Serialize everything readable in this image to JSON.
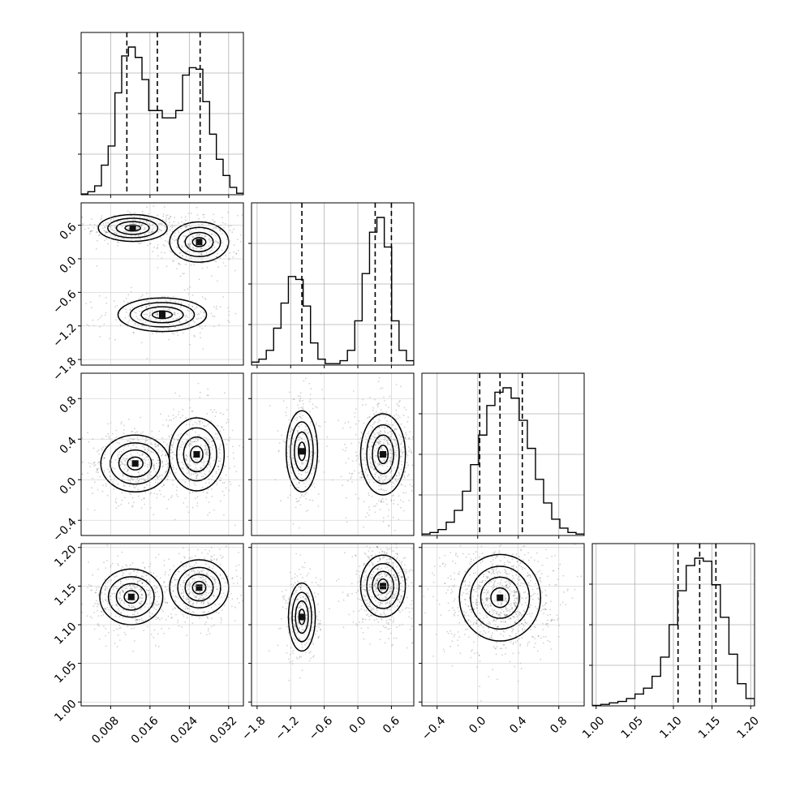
{
  "chart_data": {
    "type": "corner",
    "title": "",
    "parameters": [
      {
        "name": "",
        "range": [
          0.002,
          0.035
        ],
        "ticks": [
          0.008,
          0.016,
          0.024,
          0.032
        ],
        "tick_labels": [
          "0.008",
          "0.016",
          "0.024",
          "0.032"
        ],
        "quantiles": [
          0.0113,
          0.0175,
          0.0262
        ]
      },
      {
        "name": "",
        "range": [
          -1.9,
          1.0
        ],
        "ticks": [
          -1.8,
          -1.2,
          -0.6,
          0.0,
          0.6
        ],
        "tick_labels": [
          "−1.8",
          "−1.2",
          "−0.6",
          "0.0",
          "0.6"
        ],
        "quantiles": [
          -1.0,
          0.31,
          0.6
        ]
      },
      {
        "name": "",
        "range": [
          -0.55,
          1.05
        ],
        "ticks": [
          -0.4,
          0.0,
          0.4,
          0.8
        ],
        "tick_labels": [
          "−0.4",
          "0.0",
          "0.4",
          "0.8"
        ],
        "quantiles": [
          0.02,
          0.22,
          0.44
        ]
      },
      {
        "name": "",
        "range": [
          0.995,
          1.205
        ],
        "ticks": [
          1.0,
          1.05,
          1.1,
          1.15,
          1.2
        ],
        "tick_labels": [
          "1.00",
          "1.05",
          "1.10",
          "1.15",
          "1.20"
        ],
        "quantiles": [
          1.106,
          1.134,
          1.155
        ]
      }
    ],
    "histograms": [
      [
        0.5,
        2,
        6,
        20,
        33,
        69,
        94,
        100,
        93,
        78,
        57,
        57,
        52,
        52,
        57,
        81,
        86,
        85,
        63,
        41,
        24,
        13,
        5,
        1
      ],
      [
        2,
        4,
        10,
        25,
        42,
        60,
        58,
        40,
        15,
        4,
        1,
        1,
        3,
        10,
        30,
        62,
        90,
        100,
        80,
        30,
        10,
        3
      ],
      [
        1,
        2,
        4,
        9,
        17,
        30,
        48,
        68,
        88,
        97,
        100,
        93,
        78,
        59,
        38,
        22,
        11,
        5,
        2,
        1
      ],
      [
        0.3,
        1,
        2,
        3,
        5,
        8,
        12,
        20,
        33,
        55,
        78,
        95,
        100,
        98,
        82,
        60,
        35,
        15,
        5
      ]
    ],
    "scatter_2d": [
      {
        "x": 0,
        "y": 1,
        "modes": [
          {
            "x": 0.0125,
            "y": 0.55,
            "sx": 0.0035,
            "sy": 0.12,
            "w": 0.33
          },
          {
            "x": 0.026,
            "y": 0.3,
            "sx": 0.003,
            "sy": 0.18,
            "w": 0.33
          },
          {
            "x": 0.0185,
            "y": -1.0,
            "sx": 0.0045,
            "sy": 0.15,
            "w": 0.34
          }
        ]
      },
      {
        "x": 0,
        "y": 2,
        "modes": [
          {
            "x": 0.013,
            "y": 0.16,
            "sx": 0.0035,
            "sy": 0.14,
            "w": 0.5
          },
          {
            "x": 0.0255,
            "y": 0.25,
            "sx": 0.0028,
            "sy": 0.18,
            "w": 0.5
          }
        ]
      },
      {
        "x": 0,
        "y": 3,
        "modes": [
          {
            "x": 0.0122,
            "y": 1.136,
            "sx": 0.0032,
            "sy": 0.018,
            "w": 0.5
          },
          {
            "x": 0.026,
            "y": 1.148,
            "sx": 0.003,
            "sy": 0.018,
            "w": 0.5
          }
        ]
      },
      {
        "x": 1,
        "y": 2,
        "modes": [
          {
            "x": -1.0,
            "y": 0.28,
            "sx": 0.14,
            "sy": 0.2,
            "w": 0.33
          },
          {
            "x": 0.45,
            "y": 0.25,
            "sx": 0.2,
            "sy": 0.2,
            "w": 0.67
          }
        ]
      },
      {
        "x": 1,
        "y": 3,
        "modes": [
          {
            "x": -1.0,
            "y": 1.11,
            "sx": 0.12,
            "sy": 0.022,
            "w": 0.33
          },
          {
            "x": 0.45,
            "y": 1.15,
            "sx": 0.2,
            "sy": 0.02,
            "w": 0.67
          }
        ]
      },
      {
        "x": 2,
        "y": 3,
        "modes": [
          {
            "x": 0.22,
            "y": 1.135,
            "sx": 0.2,
            "sy": 0.028,
            "w": 1.0
          }
        ]
      }
    ],
    "grid": true,
    "quantile_levels": [
      0.16,
      0.5,
      0.84
    ]
  }
}
